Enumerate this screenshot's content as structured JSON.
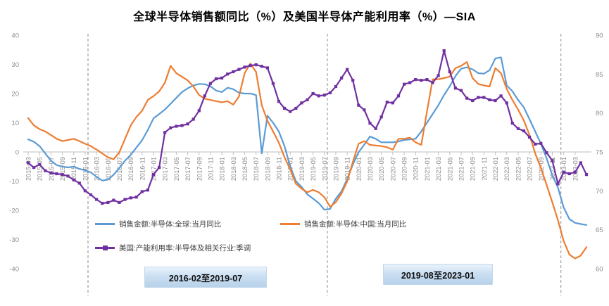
{
  "title": "全球半导体销售额同比（%）及美国半导体产能利用率（%）—SIA",
  "axes": {
    "left_ticks": [
      40,
      30,
      20,
      10,
      0,
      -10,
      -20,
      -30,
      -40
    ],
    "right_ticks": [
      90,
      85,
      80,
      75,
      70,
      65,
      60
    ],
    "tick_color": "#8c8c8c",
    "axis_line_color": "#bfbfbf"
  },
  "chart_data": {
    "type": "line",
    "x_start": "2015-03",
    "x_end": "2023-05",
    "left_axis_range": [
      -40,
      40
    ],
    "right_axis_range": [
      60,
      90
    ],
    "grid": "off",
    "legend_position": "inside-bottom-left",
    "x_tick_labels": [
      "2015-03",
      "2015-05",
      "2015-07",
      "2015-09",
      "2015-11",
      "2016-01",
      "2016-03",
      "2016-05",
      "2016-07",
      "2016-09",
      "2016-11",
      "2017-01",
      "2017-03",
      "2017-05",
      "2017-07",
      "2017-09",
      "2017-11",
      "2018-01",
      "2018-03",
      "2018-05",
      "2018-07",
      "2018-09",
      "2018-11",
      "2019-01",
      "2019-03",
      "2019-05",
      "2019-07",
      "2019-09",
      "2019-11",
      "2020-01",
      "2020-03",
      "2020-05",
      "2020-07",
      "2020-09",
      "2020-11",
      "2021-01",
      "2021-03",
      "2021-05",
      "2021-07",
      "2021-09",
      "2021-11",
      "2022-01",
      "2022-03",
      "2022-05",
      "2022-07",
      "2022-09",
      "2022-11",
      "2023-01",
      "2023-03"
    ],
    "series": [
      {
        "name": "销售金额:半导体:全球:当月同比",
        "axis": "left",
        "color": "#5B9BD5",
        "marker": "none",
        "values": [
          4.3,
          3.5,
          2.0,
          -0.5,
          -3.0,
          -4.5,
          -5.0,
          -5.3,
          -5.0,
          -5.8,
          -6.3,
          -7.0,
          -8.5,
          -9.8,
          -9.5,
          -7.8,
          -5.5,
          -3.0,
          -1.0,
          1.5,
          4.0,
          7.5,
          11.5,
          13.0,
          14.5,
          16.5,
          18.5,
          20.5,
          21.8,
          22.8,
          23.3,
          23.2,
          22.5,
          21.0,
          20.5,
          22.0,
          21.5,
          20.3,
          20.0,
          20.0,
          19.5,
          -0.5,
          12.4,
          10.0,
          7.0,
          2.0,
          -5.0,
          -10.0,
          -12.0,
          -14.5,
          -16.0,
          -17.5,
          -19.8,
          -19.5,
          -16.0,
          -13.5,
          -9.3,
          -4.3,
          -0.1,
          2.5,
          5.3,
          4.5,
          3.3,
          3.3,
          3.3,
          3.6,
          4.1,
          4.3,
          4.5,
          7.0,
          10.0,
          13.0,
          16.0,
          19.5,
          22.5,
          26.0,
          28.5,
          29.0,
          28.3,
          27.0,
          26.8,
          28.0,
          32.0,
          32.4,
          22.8,
          20.8,
          17.8,
          15.3,
          11.2,
          7.0,
          2.8,
          -2.2,
          -8.0,
          -12.2,
          -19.0,
          -23.0,
          -24.3,
          -24.7,
          -25.0
        ]
      },
      {
        "name": "销售金额:半导体:中国:当月同比",
        "axis": "left",
        "color": "#ED7D31",
        "marker": "none",
        "values": [
          11.6,
          9.1,
          7.8,
          7.0,
          5.8,
          4.5,
          3.7,
          4.1,
          4.5,
          3.7,
          2.8,
          2.0,
          0.8,
          -0.5,
          -1.8,
          -2.5,
          -0.1,
          4.5,
          9.1,
          12.0,
          14.1,
          17.8,
          19.1,
          20.75,
          23.7,
          29.5,
          27.0,
          25.75,
          24.5,
          22.4,
          19.5,
          18.25,
          17.8,
          17.4,
          17.0,
          17.4,
          16.2,
          19.0,
          27.0,
          30.3,
          27.4,
          16.0,
          10.7,
          7.0,
          3.2,
          -1.8,
          -5.9,
          -10.9,
          -12.6,
          -13.8,
          -13.0,
          -13.8,
          -15.5,
          -18.8,
          -17.2,
          -14.2,
          -10.1,
          -3.4,
          2.8,
          3.7,
          2.4,
          2.2,
          2.0,
          1.6,
          0.8,
          4.5,
          4.5,
          4.9,
          3.3,
          2.4,
          13.7,
          24.9,
          24.9,
          25.3,
          25.8,
          28.7,
          29.5,
          30.8,
          25.3,
          23.3,
          22.8,
          22.4,
          28.7,
          27.0,
          21.6,
          17.8,
          14.5,
          10.8,
          5.8,
          -0.5,
          -5.5,
          -11.3,
          -17.2,
          -23.4,
          -30.5,
          -35.1,
          -36.5,
          -35.5,
          -32.6
        ]
      },
      {
        "name": "美国:产能利用率:半导体及相关行业:季调",
        "axis": "right",
        "color": "#7030A0",
        "marker": "square",
        "values": [
          73.6,
          73.0,
          73.4,
          72.6,
          72.3,
          72.2,
          72.1,
          71.9,
          71.4,
          71.0,
          70.0,
          69.5,
          68.9,
          68.4,
          68.5,
          68.8,
          68.5,
          68.9,
          69.1,
          69.2,
          69.9,
          70.1,
          72.1,
          73.0,
          77.5,
          78.1,
          78.3,
          78.4,
          78.6,
          79.2,
          80.3,
          82.2,
          83.8,
          84.4,
          84.5,
          85.0,
          85.3,
          85.6,
          85.9,
          86.1,
          86.2,
          86.0,
          85.8,
          83.8,
          81.5,
          80.6,
          80.2,
          80.6,
          81.3,
          81.7,
          82.5,
          82.2,
          82.3,
          82.6,
          83.4,
          84.5,
          85.6,
          84.2,
          81.0,
          80.4,
          78.7,
          78.0,
          79.5,
          81.4,
          81.3,
          82.2,
          83.7,
          83.9,
          84.3,
          84.2,
          84.3,
          83.9,
          84.8,
          88.0,
          85.3,
          83.2,
          82.9,
          81.9,
          81.6,
          82.0,
          82.0,
          81.7,
          81.6,
          82.2,
          81.3,
          78.7,
          78.0,
          77.7,
          76.9,
          76.0,
          76.1,
          74.9,
          73.9,
          70.9,
          72.4,
          72.2,
          72.4,
          73.6,
          72.1
        ]
      }
    ],
    "dashed_vlines": [
      "2016-02",
      "2019-08",
      "2023-01"
    ],
    "dashed_line_color": "#a6a6a6",
    "annotations": [
      "2016-02至2019-07",
      "2019-08至2023-01"
    ]
  }
}
